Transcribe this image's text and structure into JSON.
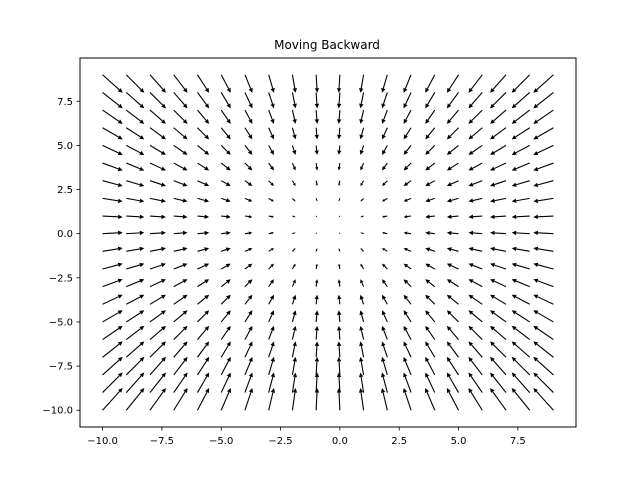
{
  "chart_data": {
    "type": "quiver",
    "title": "Moving Backward",
    "xlabel": "",
    "ylabel": "",
    "xlim": [
      -10.95,
      9.95
    ],
    "ylim": [
      -10.95,
      9.95
    ],
    "grid": false,
    "x_ticks": [
      -10.0,
      -7.5,
      -5.0,
      -2.5,
      0.0,
      2.5,
      5.0,
      7.5
    ],
    "x_tick_labels": [
      "−10.0",
      "−7.5",
      "−5.0",
      "−2.5",
      "0.0",
      "2.5",
      "5.0",
      "7.5"
    ],
    "y_ticks": [
      -10.0,
      -7.5,
      -5.0,
      -2.5,
      0.0,
      2.5,
      5.0,
      7.5
    ],
    "y_tick_labels": [
      "−10.0",
      "−7.5",
      "−5.0",
      "−2.5",
      "0.0",
      "2.5",
      "5.0",
      "7.5"
    ],
    "grid_x": {
      "start": -10,
      "stop": 9,
      "step": 1
    },
    "grid_y": {
      "start": -10,
      "stop": 9,
      "step": 1
    },
    "vector_field": {
      "u": "-(x + 0.5)",
      "v": "-(y - 0.5)",
      "center": [
        -0.5,
        0.5
      ],
      "direction": "toward center"
    },
    "arrow_color": "#000000"
  }
}
